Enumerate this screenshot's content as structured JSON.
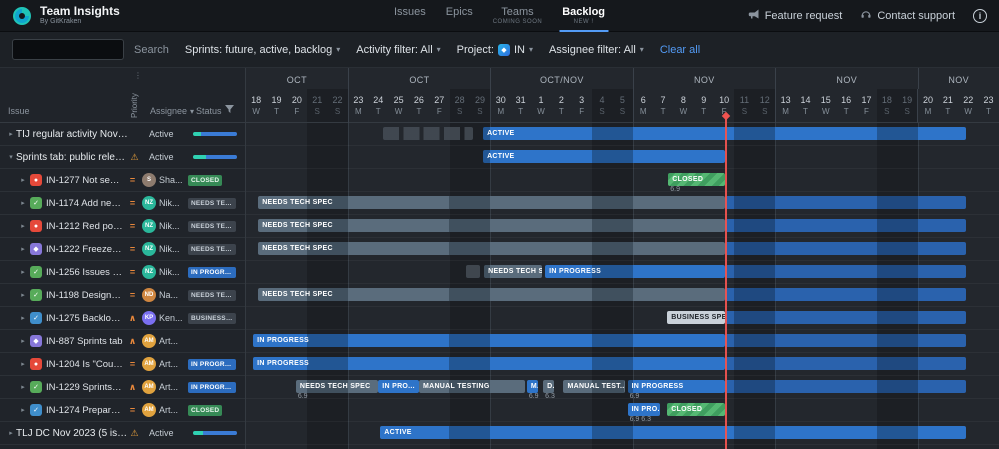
{
  "app": {
    "title": "Team Insights",
    "subtitle": "By GitKraken"
  },
  "nav": {
    "items": [
      {
        "label": "Issues",
        "badge": "",
        "active": false
      },
      {
        "label": "Epics",
        "badge": "",
        "active": false
      },
      {
        "label": "Teams",
        "badge": "COMING SOON",
        "active": false
      },
      {
        "label": "Backlog",
        "badge": "NEW !",
        "active": true
      }
    ]
  },
  "actions": {
    "feature_request": "Feature request",
    "contact_support": "Contact support"
  },
  "filterbar": {
    "search_button": "Search",
    "sprints_filter": "Sprints: future, active, backlog",
    "activity_filter": "Activity filter: All",
    "project_label": "Project:",
    "project_value": "IN",
    "assignee_filter": "Assignee filter: All",
    "clear_all": "Clear all"
  },
  "columns": {
    "issue": "Issue",
    "priority": "Priority",
    "assignee": "Assignee",
    "status": "Status"
  },
  "colors": {
    "accent_blue": "#2e74c9",
    "planned_blue": "#2a62ad",
    "spec_gray": "#5a6c7c",
    "closed_green": "#43a15e",
    "business_spec": "#c9d1d9",
    "today_red": "#ef5350",
    "warning_orange": "#e8a03c",
    "priority_orange": "#e8883c"
  },
  "timeline": {
    "total_days": 37,
    "day_width": 20.35,
    "today_day": 23.55,
    "groups": [
      {
        "label": "OCT",
        "days": [
          [
            "18",
            "W",
            0
          ],
          [
            "19",
            "T",
            0
          ],
          [
            "20",
            "F",
            0
          ],
          [
            "21",
            "S",
            1
          ],
          [
            "22",
            "S",
            1
          ]
        ]
      },
      {
        "label": "OCT",
        "days": [
          [
            "23",
            "M",
            0
          ],
          [
            "24",
            "T",
            0
          ],
          [
            "25",
            "W",
            0
          ],
          [
            "26",
            "T",
            0
          ],
          [
            "27",
            "F",
            0
          ],
          [
            "28",
            "S",
            1
          ],
          [
            "29",
            "S",
            1
          ]
        ]
      },
      {
        "label": "OCT/NOV",
        "days": [
          [
            "30",
            "M",
            0
          ],
          [
            "31",
            "T",
            0
          ],
          [
            "1",
            "W",
            0
          ],
          [
            "2",
            "T",
            0
          ],
          [
            "3",
            "F",
            0
          ],
          [
            "4",
            "S",
            1
          ],
          [
            "5",
            "S",
            1
          ]
        ]
      },
      {
        "label": "NOV",
        "days": [
          [
            "6",
            "M",
            0
          ],
          [
            "7",
            "T",
            0
          ],
          [
            "8",
            "W",
            0
          ],
          [
            "9",
            "T",
            0
          ],
          [
            "10",
            "F",
            0
          ],
          [
            "11",
            "S",
            1
          ],
          [
            "12",
            "S",
            1
          ]
        ]
      },
      {
        "label": "NOV",
        "days": [
          [
            "13",
            "M",
            0
          ],
          [
            "14",
            "T",
            0
          ],
          [
            "15",
            "W",
            0
          ],
          [
            "16",
            "T",
            0
          ],
          [
            "17",
            "F",
            0
          ],
          [
            "18",
            "S",
            1
          ],
          [
            "19",
            "S",
            1
          ]
        ]
      },
      {
        "label": "NOV",
        "days": [
          [
            "20",
            "M",
            0
          ],
          [
            "21",
            "T",
            0
          ],
          [
            "22",
            "W",
            0
          ],
          [
            "23",
            "T",
            0
          ]
        ]
      }
    ]
  },
  "rows": [
    {
      "kind": "sprint",
      "expanded": false,
      "name": "TIJ regular activity Nov'23 (...",
      "warning": false,
      "state": "Active",
      "progress": {
        "teal": 18,
        "blue": 82
      },
      "bars": [
        {
          "t": "ghost",
          "s": 6.75,
          "e": 11.15
        },
        {
          "t": "active",
          "label": "ACTIVE",
          "s": 11.65,
          "e": 35.4
        }
      ]
    },
    {
      "kind": "sprint",
      "expanded": true,
      "name": "Sprints tab: public releas...",
      "warning": true,
      "state": "Active",
      "progress": {
        "teal": 30,
        "blue": 70
      },
      "bars": [
        {
          "t": "active",
          "label": "ACTIVE",
          "s": 11.65,
          "e": 23.55
        }
      ]
    },
    {
      "kind": "issue",
      "key": "IN-1277",
      "title": "Not seeing...",
      "type": "bug",
      "type_color": "#e5493a",
      "type_glyph": "●",
      "priority": "medium",
      "assignee": {
        "initials": "S",
        "color": "#8d7b6e",
        "name": "Sha..."
      },
      "status": {
        "label": "CLOSED",
        "style": "closed"
      },
      "bars": [
        {
          "t": "closed",
          "label": "CLOSED",
          "s": 20.75,
          "e": 23.55,
          "sub": "6.9"
        }
      ]
    },
    {
      "kind": "issue",
      "key": "IN-1174",
      "title": "Add new fil...",
      "type": "task",
      "type_color": "#57ab5a",
      "type_glyph": "✓",
      "priority": "medium",
      "assignee": {
        "initials": "NZ",
        "color": "#2ab79a",
        "name": "Nik..."
      },
      "status": {
        "label": "NEEDS TECH SPEC",
        "style": "spec"
      },
      "bars": [
        {
          "t": "spec",
          "label": "NEEDS TECH SPEC",
          "s": 0.6,
          "e": 23.55
        },
        {
          "t": "planned",
          "s": 23.55,
          "e": 35.4
        }
      ]
    },
    {
      "kind": "issue",
      "key": "IN-1212",
      "title": "Red point f...",
      "type": "bug",
      "type_color": "#e5493a",
      "type_glyph": "●",
      "priority": "medium",
      "assignee": {
        "initials": "NZ",
        "color": "#2ab79a",
        "name": "Nik..."
      },
      "status": {
        "label": "NEEDS TECH SPEC",
        "style": "spec"
      },
      "bars": [
        {
          "t": "spec",
          "label": "NEEDS TECH SPEC",
          "s": 0.6,
          "e": 23.55
        },
        {
          "t": "planned",
          "s": 23.55,
          "e": 35.4
        }
      ]
    },
    {
      "kind": "issue",
      "key": "IN-1222",
      "title": "Freeze/pin...",
      "type": "epic",
      "type_color": "#8777d9",
      "type_glyph": "◆",
      "priority": "medium",
      "assignee": {
        "initials": "NZ",
        "color": "#2ab79a",
        "name": "Nik..."
      },
      "status": {
        "label": "NEEDS TECH SPEC",
        "style": "spec"
      },
      "bars": [
        {
          "t": "spec",
          "label": "NEEDS TECH SPEC",
          "s": 0.6,
          "e": 23.55
        },
        {
          "t": "planned",
          "s": 23.55,
          "e": 35.4
        }
      ]
    },
    {
      "kind": "issue",
      "key": "IN-1256",
      "title": "Issues reo...",
      "type": "task",
      "type_color": "#57ab5a",
      "type_glyph": "✓",
      "priority": "medium",
      "assignee": {
        "initials": "NZ",
        "color": "#2ab79a",
        "name": "Nik..."
      },
      "status": {
        "label": "IN PROGRESS",
        "style": "progress"
      },
      "bars": [
        {
          "t": "ghost",
          "s": 10.8,
          "e": 11.5
        },
        {
          "t": "spec",
          "label": "NEEDS TECH S...",
          "s": 11.7,
          "e": 14.55
        },
        {
          "t": "progress",
          "label": "IN PROGRESS",
          "s": 14.7,
          "e": 23.55
        },
        {
          "t": "planned",
          "s": 23.55,
          "e": 35.4
        }
      ]
    },
    {
      "kind": "issue",
      "key": "IN-1198",
      "title": "Design: Hi...",
      "type": "task",
      "type_color": "#57ab5a",
      "type_glyph": "✓",
      "priority": "medium",
      "assignee": {
        "initials": "ND",
        "color": "#cf8640",
        "name": "Na..."
      },
      "status": {
        "label": "NEEDS TECH SPEC",
        "style": "spec"
      },
      "bars": [
        {
          "t": "spec",
          "label": "NEEDS TECH SPEC",
          "s": 0.6,
          "e": 23.55
        },
        {
          "t": "planned",
          "s": 23.55,
          "e": 35.4
        }
      ]
    },
    {
      "kind": "issue",
      "key": "IN-1275",
      "title": "Backlog vi...",
      "type": "subtask",
      "type_color": "#3f8ecb",
      "type_glyph": "✓",
      "priority": "high",
      "assignee": {
        "initials": "KP",
        "color": "#7a6ff0",
        "name": "Ken..."
      },
      "status": {
        "label": "BUSINESS SPEC",
        "style": "spec"
      },
      "bars": [
        {
          "t": "bspec",
          "label": "BUSINESS SPEC",
          "s": 20.7,
          "e": 23.55
        },
        {
          "t": "planned",
          "s": 23.55,
          "e": 35.4
        }
      ]
    },
    {
      "kind": "issue",
      "key": "IN-887",
      "title": "Sprints tab",
      "type": "epic",
      "type_color": "#8777d9",
      "type_glyph": "◆",
      "priority": "high",
      "assignee": {
        "initials": "AM",
        "color": "#e0a23e",
        "name": "Art..."
      },
      "status": {
        "label": "",
        "style": ""
      },
      "bars": [
        {
          "t": "progress",
          "label": "IN PROGRESS",
          "s": 0.35,
          "e": 23.55
        },
        {
          "t": "planned",
          "s": 23.55,
          "e": 35.4
        }
      ]
    },
    {
      "kind": "issue",
      "key": "IN-1204",
      "title": "Is \"Couldn'...",
      "type": "bug",
      "type_color": "#e5493a",
      "type_glyph": "●",
      "priority": "medium",
      "assignee": {
        "initials": "AM",
        "color": "#e0a23e",
        "name": "Art..."
      },
      "status": {
        "label": "IN PROGRESS",
        "style": "progress"
      },
      "bars": [
        {
          "t": "progress",
          "label": "IN PROGRESS",
          "s": 0.35,
          "e": 23.55
        },
        {
          "t": "planned",
          "s": 23.55,
          "e": 35.4
        }
      ]
    },
    {
      "kind": "issue",
      "key": "IN-1229",
      "title": "Sprints re...",
      "type": "task",
      "type_color": "#57ab5a",
      "type_glyph": "✓",
      "priority": "high",
      "assignee": {
        "initials": "AM",
        "color": "#e0a23e",
        "name": "Art..."
      },
      "status": {
        "label": "IN PROGRESS",
        "style": "progress"
      },
      "bars": [
        {
          "t": "spec",
          "label": "NEEDS TECH SPEC",
          "s": 2.45,
          "e": 6.5,
          "sub": "6.9"
        },
        {
          "t": "progress",
          "label": "IN PRO...",
          "s": 6.5,
          "e": 8.5
        },
        {
          "t": "spec",
          "label": "MANUAL TESTING",
          "s": 8.5,
          "e": 13.7
        },
        {
          "t": "progress",
          "label": "M...",
          "s": 13.8,
          "e": 14.35,
          "sub": "6.9"
        },
        {
          "t": "spec",
          "label": "D...",
          "s": 14.6,
          "e": 15.15,
          "sub": "6.3"
        },
        {
          "t": "spec",
          "label": "MANUAL TEST...",
          "s": 15.6,
          "e": 18.6
        },
        {
          "t": "progress",
          "label": "IN PROGRESS",
          "s": 18.75,
          "e": 23.55,
          "sub": "6.9"
        },
        {
          "t": "planned",
          "s": 23.55,
          "e": 35.4
        }
      ]
    },
    {
      "kind": "issue",
      "key": "IN-1274",
      "title": "Prepare to...",
      "type": "subtask",
      "type_color": "#3f8ecb",
      "type_glyph": "✓",
      "priority": "medium",
      "assignee": {
        "initials": "AM",
        "color": "#e0a23e",
        "name": "Art..."
      },
      "status": {
        "label": "CLOSED",
        "style": "closed"
      },
      "bars": [
        {
          "t": "progress",
          "label": "IN PRO...",
          "s": 18.75,
          "e": 20.35,
          "sub": "6.9  6.3"
        },
        {
          "t": "closed",
          "label": "CLOSED",
          "s": 20.7,
          "e": 23.55
        }
      ]
    },
    {
      "kind": "sprint",
      "expanded": false,
      "name": "TLJ DC Nov 2023 (5 issu...",
      "warning": true,
      "state": "Active",
      "progress": {
        "teal": 22,
        "blue": 78
      },
      "bars": [
        {
          "t": "active",
          "label": "ACTIVE",
          "s": 6.6,
          "e": 35.4
        }
      ]
    }
  ]
}
